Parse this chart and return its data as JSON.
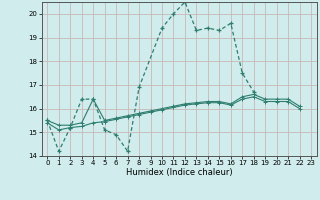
{
  "xlabel": "Humidex (Indice chaleur)",
  "x_peak": [
    0,
    1,
    2,
    3,
    4,
    5,
    6,
    7,
    8,
    10,
    11,
    12,
    13,
    14,
    15,
    16,
    17,
    18
  ],
  "y_peak": [
    15.5,
    14.2,
    15.2,
    16.4,
    16.4,
    15.1,
    14.9,
    14.2,
    16.9,
    19.4,
    20.0,
    20.5,
    19.3,
    19.4,
    19.3,
    19.6,
    17.5,
    16.7
  ],
  "x_flat1": [
    0,
    1,
    2,
    3,
    4,
    5,
    6,
    7,
    8,
    9,
    10,
    11,
    12,
    13,
    14,
    15,
    16,
    17,
    18,
    19,
    20,
    21,
    22
  ],
  "y_flat1": [
    15.5,
    15.3,
    15.3,
    15.4,
    16.4,
    15.5,
    15.6,
    15.7,
    15.8,
    15.9,
    16.0,
    16.1,
    16.2,
    16.25,
    16.3,
    16.3,
    16.2,
    16.5,
    16.6,
    16.4,
    16.4,
    16.4,
    16.1
  ],
  "x_flat2": [
    0,
    1,
    2,
    3,
    4,
    5,
    6,
    7,
    8,
    9,
    10,
    11,
    12,
    13,
    14,
    15,
    16,
    17,
    18,
    19,
    20,
    21,
    22
  ],
  "y_flat2": [
    15.4,
    15.1,
    15.2,
    15.25,
    15.4,
    15.45,
    15.55,
    15.65,
    15.75,
    15.85,
    15.95,
    16.05,
    16.15,
    16.2,
    16.25,
    16.25,
    16.15,
    16.4,
    16.5,
    16.3,
    16.3,
    16.3,
    16.0
  ],
  "ylim": [
    14,
    20.5
  ],
  "xlim": [
    -0.5,
    23.5
  ],
  "yticks": [
    14,
    15,
    16,
    17,
    18,
    19,
    20
  ],
  "xticks": [
    0,
    1,
    2,
    3,
    4,
    5,
    6,
    7,
    8,
    9,
    10,
    11,
    12,
    13,
    14,
    15,
    16,
    17,
    18,
    19,
    20,
    21,
    22,
    23
  ],
  "line_color": "#2e7d6e",
  "bg_color": "#d0ecec",
  "grid_color_major": "#c8b8b8",
  "grid_color_minor": "#d8eaea"
}
